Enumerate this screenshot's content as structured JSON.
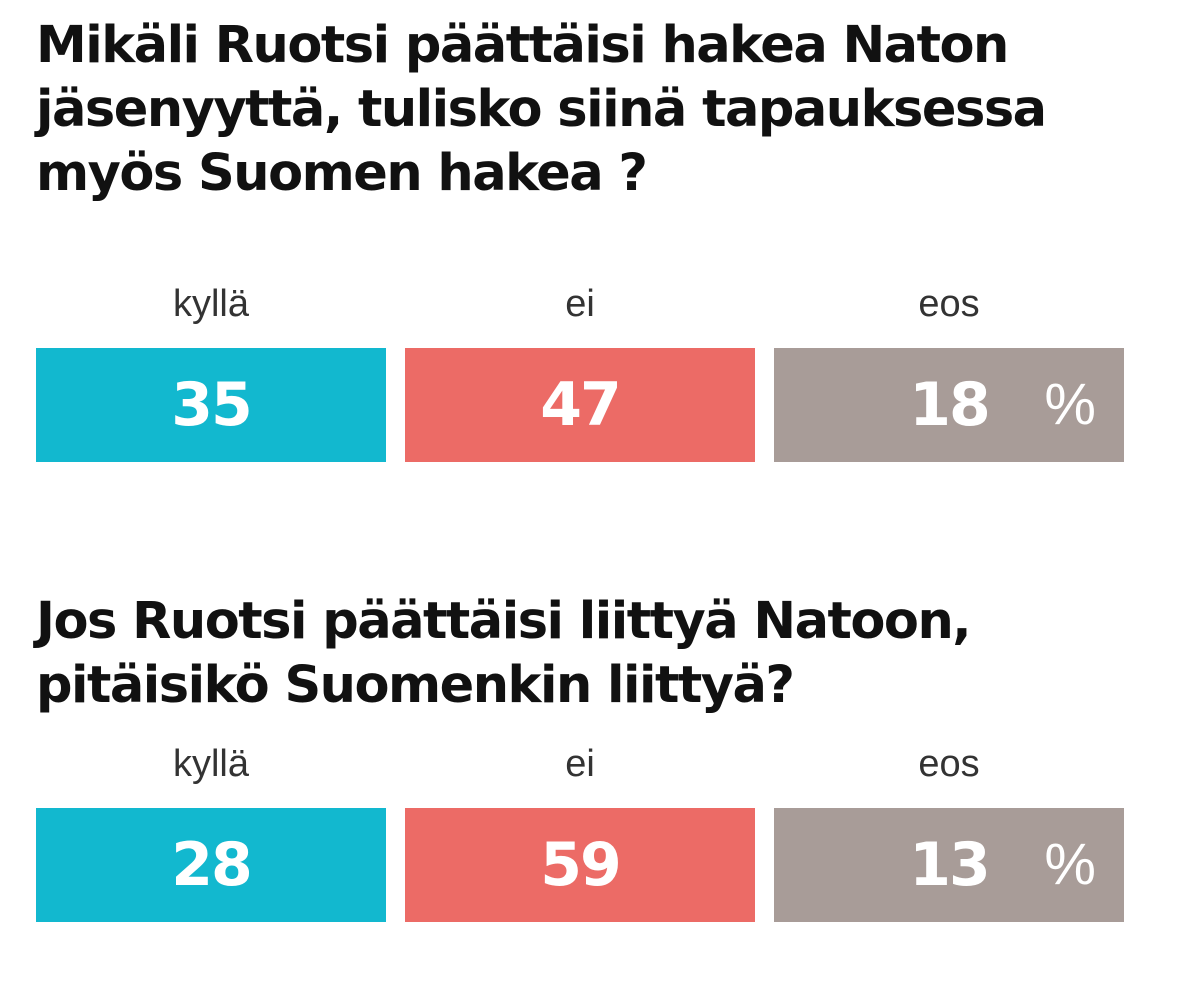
{
  "chart_data": [
    {
      "type": "bar",
      "title": "Mikäli Ruotsi päättäisi hakea Naton\njäsenyyttä, tulisko siinä tapauksessa\nmyös Suomen hakea ?",
      "categories": [
        "kyllä",
        "ei",
        "eos"
      ],
      "values": [
        35,
        47,
        18
      ],
      "unit": "%",
      "colors": [
        "#12b8cf",
        "#ec6b66",
        "#a89c98"
      ]
    },
    {
      "type": "bar",
      "title": "Jos Ruotsi päättäisi liittyä Natoon,\npitäisikö Suomenkin liittyä?",
      "categories": [
        "kyllä",
        "ei",
        "eos"
      ],
      "values": [
        28,
        59,
        13
      ],
      "unit": "%",
      "colors": [
        "#12b8cf",
        "#ec6b66",
        "#a89c98"
      ]
    }
  ]
}
